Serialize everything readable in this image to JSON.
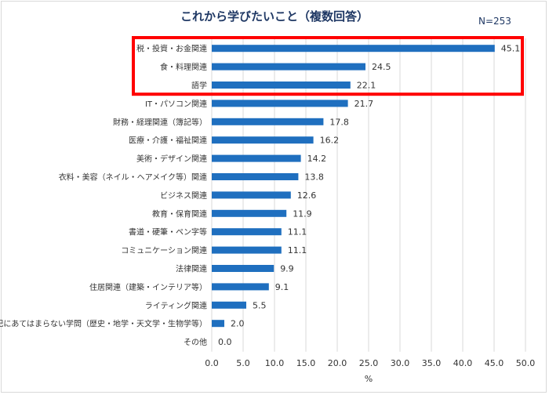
{
  "chart_title": "これから学びたいこと（複数回答）",
  "n_label": "N=253",
  "chart_data": {
    "type": "bar",
    "orientation": "horizontal",
    "title": "これから学びたいこと（複数回答）",
    "xlabel": "%",
    "ylabel": "",
    "xlim": [
      0,
      50
    ],
    "xticks": [
      "0.0",
      "5.0",
      "10.0",
      "15.0",
      "20.0",
      "25.0",
      "30.0",
      "35.0",
      "40.0",
      "45.0",
      "50.0"
    ],
    "grid": true,
    "categories": [
      "税・投資・お金関連",
      "食・料理関連",
      "語学",
      "IT・パソコン関連",
      "財務・経理関連（簿記等）",
      "医療・介護・福祉関連",
      "美術・デザイン関連",
      "衣料・美容（ネイル・ヘアメイク等）関連",
      "ビジネス関連",
      "教育・保育関連",
      "書道・硬筆・ペン字等",
      "コミュニケーション関連",
      "法律関連",
      "住居関連（建築・インテリア等）",
      "ライティング関連",
      "上記にあてはまらない学問（歴史・地学・天文学・生物学等）",
      "その他"
    ],
    "values": [
      45.1,
      24.5,
      22.1,
      21.7,
      17.8,
      16.2,
      14.2,
      13.8,
      12.6,
      11.9,
      11.1,
      11.1,
      9.9,
      9.1,
      5.5,
      2.0,
      0.0
    ],
    "value_labels": [
      "45.1",
      "24.5",
      "22.1",
      "21.7",
      "17.8",
      "16.2",
      "14.2",
      "13.8",
      "12.6",
      "11.9",
      "11.1",
      "11.1",
      "9.9",
      "9.1",
      "5.5",
      "2.0",
      "0.0"
    ],
    "highlight_top_n": 3,
    "bar_color": "#1f6fbf",
    "highlight_color": "#ff0000"
  }
}
